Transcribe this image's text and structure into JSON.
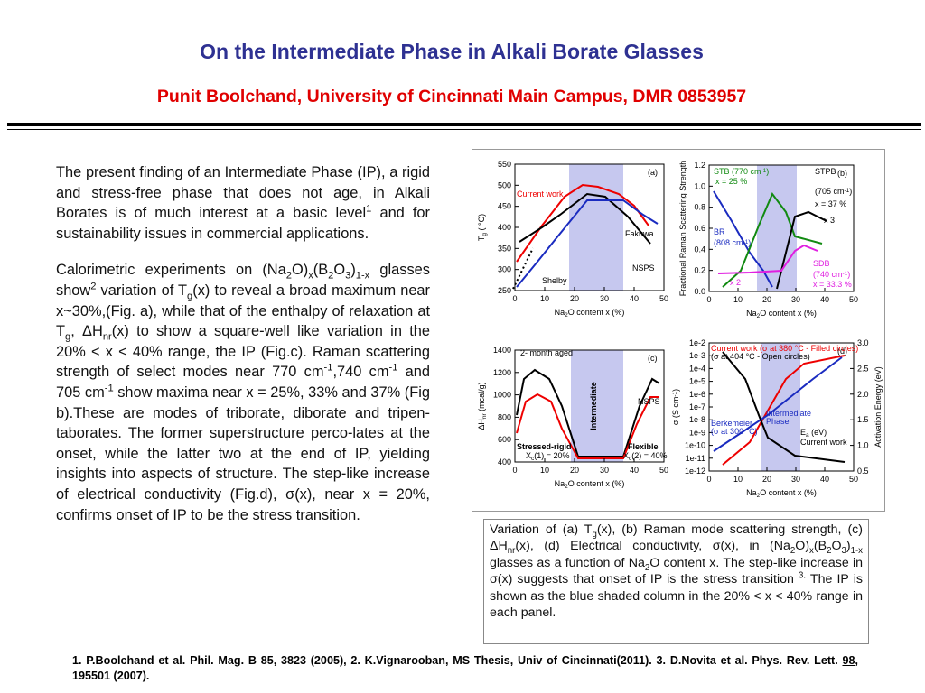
{
  "header": {
    "title": "On the Intermediate Phase in Alkali Borate Glasses",
    "subtitle": "Punit Boolchand, University of Cincinnati Main Campus, DMR 0853957"
  },
  "body": {
    "paragraphs": [
      [
        "The present finding of an Intermediate Phase (IP), a rigid and stress-free phase that does not age, in Alkali Borates is of much interest at a basic level",
        {
          "sup": "1"
        },
        " and for sustainability issues in commercial applications."
      ],
      [
        "Calorimetric experiments on (Na",
        {
          "sub": "2"
        },
        "O)",
        {
          "sub": "x"
        },
        "(B",
        {
          "sub": "2"
        },
        "O",
        {
          "sub": "3"
        },
        ")",
        {
          "sub": "1-x"
        },
        " glasses show",
        {
          "sup": "2"
        },
        " variation of T",
        {
          "sub": "g"
        },
        "(x) to reveal a broad maximum near x~30%,(Fig. a), while that of the enthalpy of relaxation at T",
        {
          "sub": "g"
        },
        ", ΔH",
        {
          "sub": "nr"
        },
        "(x) to show a square-well like variation in the  20% < x < 40% range, the IP (Fig.c). Raman scattering strength of  select modes near 770 cm",
        {
          "sup": "-1"
        },
        ",740 cm",
        {
          "sup": "-1"
        },
        " and 705 cm",
        {
          "sup": "-1"
        },
        " show maxima near x = 25%, 33% and 37% (Fig b).These are modes of triborate, diborate and tripen-taborates. The former superstructure perco-lates at the onset, while the latter two at the end of IP, yielding insights into aspects of structure.  The step-like increase of electrical conductivity  (Fig.d),  σ(x),  near  x = 20%, confirms onset of  IP to be the stress transition."
      ]
    ]
  },
  "figure": {
    "panels": [
      {
        "label": "(a)",
        "xticks": [
          0,
          10,
          20,
          30,
          40,
          50
        ],
        "yticks": [
          250,
          300,
          350,
          400,
          450,
          500,
          550
        ],
        "xlabel": [
          "Na",
          {
            "sub": "2"
          },
          "O content  x (%)"
        ],
        "ylabel": [
          "T",
          {
            "sub": "g"
          },
          " ( °C)"
        ],
        "notes": [
          "Current work",
          "Fakuwa",
          "NSPS",
          "Shelby"
        ]
      },
      {
        "label": "(b)",
        "xticks": [
          0,
          10,
          20,
          30,
          40,
          50
        ],
        "yticks": [
          "0.0",
          "0.2",
          "0.4",
          "0.6",
          "0.8",
          "1.0",
          "1.2"
        ],
        "xlabel": [
          "Na",
          {
            "sub": "2"
          },
          "O content  x (%)"
        ],
        "ylabel": [
          "Fractional Raman Scattering Strength"
        ],
        "notes": [
          [
            "STB (770 cm",
            {
              "sup": "-1"
            },
            ")"
          ],
          "x = 25 %",
          "STPB",
          [
            "(705 cm",
            {
              "sup": "-1"
            },
            ")"
          ],
          "x = 37 %",
          "x 3",
          "BR",
          [
            "(808 cm",
            {
              "sup": "-1"
            },
            ")"
          ],
          "SDB",
          [
            "(740 cm",
            {
              "sup": "-1"
            },
            ")"
          ],
          "x = 33.3 %",
          "x 2"
        ]
      },
      {
        "label": "(c)",
        "xticks": [
          0,
          10,
          20,
          30,
          40,
          50
        ],
        "yticks": [
          400,
          600,
          800,
          1000,
          1200,
          1400
        ],
        "xlabel": [
          "Na",
          {
            "sub": "2"
          },
          "O content  x (%)"
        ],
        "ylabel": [
          "ΔH",
          {
            "sub": "nr"
          },
          " (mcal/g)"
        ],
        "notes": [
          "2- month aged",
          "Intermediate",
          "NSPS",
          "Stressed-rigid",
          "Flexible",
          [
            "X",
            {
              "sub": "c"
            },
            "(1) = 20%"
          ],
          [
            "X",
            {
              "sub": "c"
            },
            "(2) = 40%"
          ]
        ]
      },
      {
        "label": "(d)",
        "xticks": [
          0,
          10,
          20,
          30,
          40,
          50
        ],
        "yticks": [
          "1e-12",
          "1e-11",
          "1e-10",
          "1e-9",
          "1e-8",
          "1e-7",
          "1e-6",
          "1e-5",
          "1e-4",
          "1e-3",
          "1e-2"
        ],
        "y2ticks": [
          "0.5",
          "1.0",
          "1.5",
          "2.0",
          "2.5",
          "3.0"
        ],
        "xlabel": [
          "Na",
          {
            "sub": "2"
          },
          "O content  x (%)"
        ],
        "ylabel": [
          "σ (S cm",
          {
            "sup": "-1"
          },
          ")"
        ],
        "y2label": [
          "Activation Energy (eV)"
        ],
        "notes": [
          "Current work (σ at 380 °C - Filled circles)",
          "(σ at 404 °C - Open circles)",
          "Berkemeier",
          "(σ at 300 °C)",
          "Intermediate",
          "Phase",
          [
            "E",
            {
              "sub": "a"
            },
            " (eV)"
          ],
          "Current work"
        ]
      }
    ]
  },
  "caption": [
    "Variation of (a) T",
    {
      "sub": "g"
    },
    "(x), (b) Raman mode scattering strength, (c)  ΔH",
    {
      "sub": "nr"
    },
    "(x), (d) Electrical conductivity, σ(x), in (Na",
    {
      "sub": "2"
    },
    "O)",
    {
      "sub": "x"
    },
    "(B",
    {
      "sub": "2"
    },
    "O",
    {
      "sub": "3"
    },
    ")",
    {
      "sub": "1-x"
    },
    " glasses as a function of  Na",
    {
      "sub": "2"
    },
    "O content x. The step-like increase in σ(x) suggests that onset of IP is the stress transition ",
    {
      "sup": "3."
    },
    " The IP is shown as the blue shaded column in the 20% < x < 40% range in each panel."
  ],
  "footer": [
    "1. P.Boolchand et al. Phil. Mag. B  85, 3823 (2005),  2. K.Vignarooban, MS Thesis, Univ of Cincinnati(2011). 3.  D.Novita et al. Phys. Rev. Lett. ",
    {
      "u": "98"
    },
    ", 195501 (2007)."
  ]
}
